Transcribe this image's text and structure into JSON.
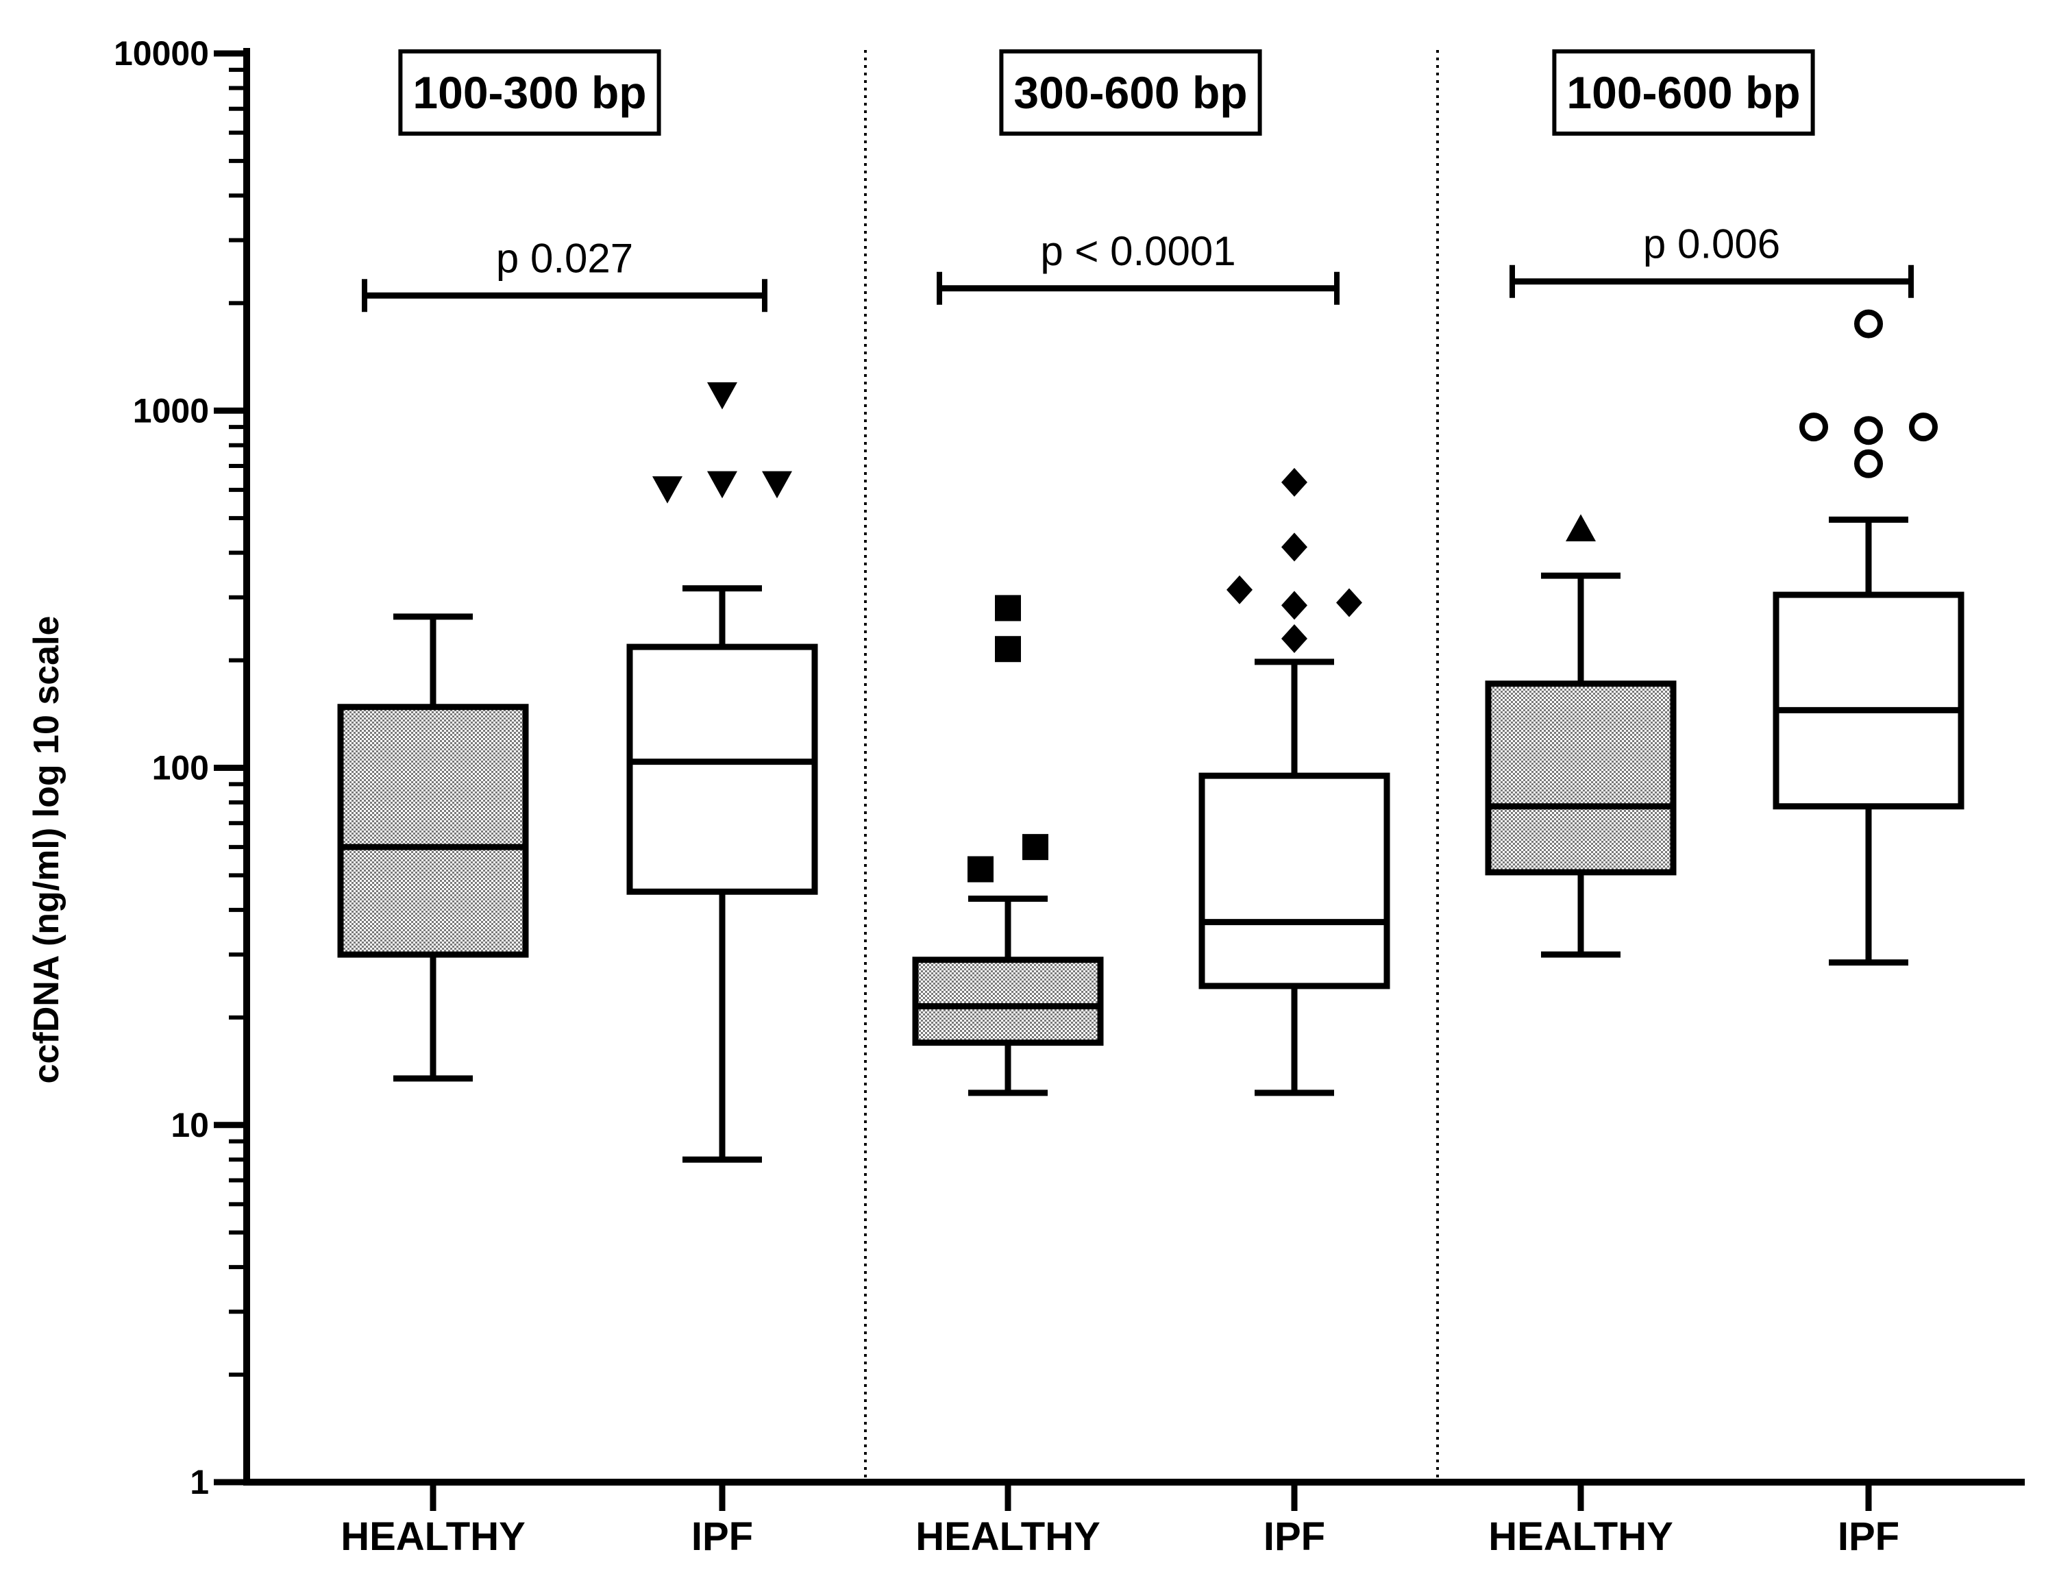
{
  "chart_data": {
    "type": "box",
    "ylabel": "ccfDNA (ng/ml) log 10 scale",
    "yscale": "log10",
    "ylim": [
      1,
      10000
    ],
    "yticks": [
      {
        "value": 1,
        "label": "1"
      },
      {
        "value": 10,
        "label": "10"
      },
      {
        "value": 100,
        "label": "100"
      },
      {
        "value": 1000,
        "label": "1000"
      },
      {
        "value": 10000,
        "label": "10000"
      }
    ],
    "panels": [
      {
        "title": "100-300 bp",
        "p_value": "p 0.027",
        "bracket_y": 2100,
        "groups": [
          {
            "name": "HEALTHY",
            "fill": "hatched",
            "whisker_low": 13.5,
            "q1": 30,
            "median": 60,
            "q3": 148,
            "whisker_high": 265,
            "outlier_marker": "none",
            "outliers": []
          },
          {
            "name": "IPF",
            "fill": "white",
            "whisker_low": 8,
            "q1": 45,
            "median": 104,
            "q3": 218,
            "whisker_high": 318,
            "outlier_marker": "triangle-down",
            "outliers": [
              {
                "value": 1100,
                "offset": 0
              },
              {
                "value": 600,
                "offset": -1
              },
              {
                "value": 620,
                "offset": 0
              },
              {
                "value": 620,
                "offset": 1
              }
            ]
          }
        ]
      },
      {
        "title": "300-600 bp",
        "p_value": "p < 0.0001",
        "bracket_y": 2200,
        "groups": [
          {
            "name": "HEALTHY",
            "fill": "hatched",
            "whisker_low": 12.3,
            "q1": 17,
            "median": 21.5,
            "q3": 29,
            "whisker_high": 43,
            "outlier_marker": "square",
            "outliers": [
              {
                "value": 280,
                "offset": 0
              },
              {
                "value": 215,
                "offset": 0
              },
              {
                "value": 60,
                "offset": 0.5
              },
              {
                "value": 52,
                "offset": -0.5
              }
            ]
          },
          {
            "name": "IPF",
            "fill": "white",
            "whisker_low": 12.3,
            "q1": 24.5,
            "median": 37,
            "q3": 95,
            "whisker_high": 198,
            "outlier_marker": "diamond",
            "outliers": [
              {
                "value": 630,
                "offset": 0
              },
              {
                "value": 415,
                "offset": 0
              },
              {
                "value": 315,
                "offset": -1
              },
              {
                "value": 290,
                "offset": 1
              },
              {
                "value": 285,
                "offset": 0
              },
              {
                "value": 230,
                "offset": 0
              }
            ]
          }
        ]
      },
      {
        "title": "100-600 bp",
        "p_value": "p 0.006",
        "bracket_y": 2300,
        "groups": [
          {
            "name": "HEALTHY",
            "fill": "hatched",
            "whisker_low": 30,
            "q1": 51,
            "median": 78,
            "q3": 172,
            "whisker_high": 345,
            "outlier_marker": "triangle-up",
            "outliers": [
              {
                "value": 470,
                "offset": 0
              }
            ]
          },
          {
            "name": "IPF",
            "fill": "white",
            "whisker_low": 28.5,
            "q1": 78,
            "median": 145,
            "q3": 305,
            "whisker_high": 495,
            "outlier_marker": "circle",
            "outliers": [
              {
                "value": 1750,
                "offset": 0
              },
              {
                "value": 900,
                "offset": -1
              },
              {
                "value": 880,
                "offset": 0
              },
              {
                "value": 900,
                "offset": 1
              },
              {
                "value": 710,
                "offset": 0
              }
            ]
          }
        ]
      }
    ]
  }
}
